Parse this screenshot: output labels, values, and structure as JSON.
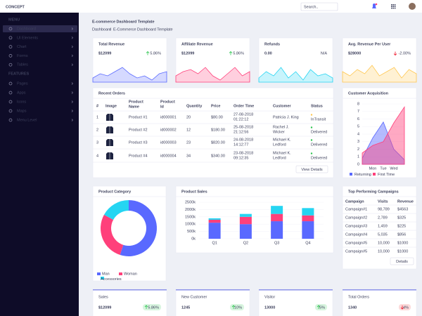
{
  "header": {
    "logo": "CONCEPT",
    "search": "Search.."
  },
  "sidebar": {
    "menu_label": "MENU",
    "menu": [
      "Dashboard",
      "UI Elements",
      "Chart",
      "Forms",
      "Tables"
    ],
    "features_label": "FEATURES",
    "features": [
      "Pages",
      "Apps",
      "Icons",
      "Maps",
      "Menu Level"
    ]
  },
  "page": {
    "title": "E-commerce Dashboard Template",
    "breadcrumb": [
      "Dashboard",
      "E-Commerce Dashboard Template"
    ]
  },
  "stats": [
    {
      "title": "Total Revenue",
      "value": "$12099",
      "change": "5.86%",
      "trend": "up",
      "change_color": "#2ec551",
      "color": "#5969ff",
      "ylim": [
        0,
        10
      ],
      "spark": [
        2,
        4,
        3,
        5,
        7,
        4,
        2,
        3,
        1,
        4,
        5
      ]
    },
    {
      "title": "Affiliate Revenue",
      "value": "$12099",
      "change": "5.86%",
      "trend": "up",
      "change_color": "#2ec551",
      "color": "#ff407b",
      "ylim": [
        0,
        10
      ],
      "spark": [
        3,
        5,
        6,
        4,
        7,
        3,
        1,
        4,
        7,
        3,
        5
      ]
    },
    {
      "title": "Refunds",
      "value": "0.00",
      "change": "N/A",
      "trend": "none",
      "change_color": "#5969ff",
      "color": "#25d5f2",
      "ylim": [
        0,
        10
      ],
      "spark": [
        2,
        5,
        3,
        7,
        2,
        5,
        1,
        6,
        3,
        4,
        2
      ]
    },
    {
      "title": "Avg. Revenue Per User",
      "value": "$28000",
      "change": "-2.00%",
      "trend": "down",
      "change_color": "#ef172c",
      "color": "#ffc750",
      "ylim": [
        0,
        10
      ],
      "spark": [
        5,
        3,
        6,
        4,
        8,
        3,
        5,
        7,
        2,
        6,
        4
      ]
    }
  ],
  "orders": {
    "title": "Recent Orders",
    "columns": [
      "#",
      "Image",
      "Product Name",
      "Product Id",
      "Quantity",
      "Price",
      "Order Time",
      "Customer",
      "Status"
    ],
    "rows": [
      [
        "1",
        "",
        "Product #1",
        "id000001",
        "20",
        "$80.00",
        "27-08-2018 01:22:12",
        "Patricia J. King",
        "InTransit"
      ],
      [
        "2",
        "",
        "Product #2",
        "id000002",
        "12",
        "$180.00",
        "25-08-2018 21:12:56",
        "Rachel J. Wicker",
        "Delivered"
      ],
      [
        "3",
        "",
        "Product #3",
        "id000003",
        "23",
        "$820.00",
        "24-08-2018 14:12:77",
        "Michael K. Ledford",
        "Delivered"
      ],
      [
        "4",
        "",
        "Product #4",
        "id000004",
        "34",
        "$340.00",
        "23-08-2018 09:12:35",
        "Michael K. Ledford",
        "Delivered"
      ]
    ],
    "status_colors": [
      "#ffc750",
      "#2ec551",
      "#2ec551",
      "#2ec551"
    ],
    "button": "View Details"
  },
  "acquisition": {
    "title": "Customer Acquisition",
    "categories": [
      null,
      "Mon",
      "Tue",
      "Wed",
      null
    ],
    "ylim": [
      0,
      8
    ],
    "yticks": [
      0,
      1,
      2,
      3,
      4,
      5,
      6,
      7,
      8
    ],
    "series": [
      {
        "name": "Returning",
        "color": "#5969ff",
        "values": [
          0.8,
          3.5,
          5.6,
          2,
          0.6
        ]
      },
      {
        "name": "First Time",
        "color": "#ff407b",
        "values": [
          1.5,
          2.5,
          3,
          5.5,
          7.6
        ]
      }
    ]
  },
  "category": {
    "title": "Product Category",
    "series": [
      {
        "name": "Man",
        "color": "#5969ff",
        "value": 55
      },
      {
        "name": "Woman",
        "color": "#ff407b",
        "value": 28
      },
      {
        "name": "Accessories",
        "color": "#25d5f2",
        "value": 17
      }
    ]
  },
  "sales": {
    "title": "Product Sales",
    "categories": [
      "Q1",
      "Q2",
      "Q3",
      "Q4"
    ],
    "ylim": [
      0,
      2500
    ],
    "yticks": [
      {
        "value": 0,
        "label": "0k"
      },
      {
        "value": 500,
        "label": "500k"
      },
      {
        "value": 1000,
        "label": "1000k"
      },
      {
        "value": 1500,
        "label": "1500k"
      },
      {
        "value": 2000,
        "label": "2000k"
      },
      {
        "value": 2500,
        "label": "2500k"
      }
    ],
    "series": [
      {
        "name": "Man",
        "color": "#5969ff",
        "values": [
          1100,
          1000,
          1200,
          1200
        ]
      },
      {
        "name": "Woman",
        "color": "#ff407b",
        "values": [
          200,
          500,
          500,
          400
        ]
      },
      {
        "name": "Accessories",
        "color": "#25d5f2",
        "values": [
          100,
          200,
          550,
          500
        ]
      }
    ]
  },
  "campaigns": {
    "title": "Top Performing Campaigns",
    "columns": [
      "Campaign",
      "Visits",
      "Revenue"
    ],
    "rows": [
      [
        "Campaign#1",
        "98,789",
        "$4563"
      ],
      [
        "Campaign#2",
        "2,789",
        "$325"
      ],
      [
        "Campaign#3",
        "1,459",
        "$225"
      ],
      [
        "Campaign#4",
        "5,035",
        "$856"
      ],
      [
        "Campaign#5",
        "10,000",
        "$1000"
      ],
      [
        "Campaign#5",
        "10,000",
        "$1000"
      ]
    ],
    "button": "Details"
  },
  "bottom": [
    {
      "title": "Sales",
      "value": "$12099",
      "change": "5.86%",
      "trend": "up"
    },
    {
      "title": "New Customer",
      "value": "1245",
      "change": "10%",
      "trend": "up"
    },
    {
      "title": "Visitor",
      "value": "13000",
      "change": "5%",
      "trend": "up"
    },
    {
      "title": "Total Orders",
      "value": "1340",
      "change": "4%",
      "trend": "down"
    }
  ]
}
